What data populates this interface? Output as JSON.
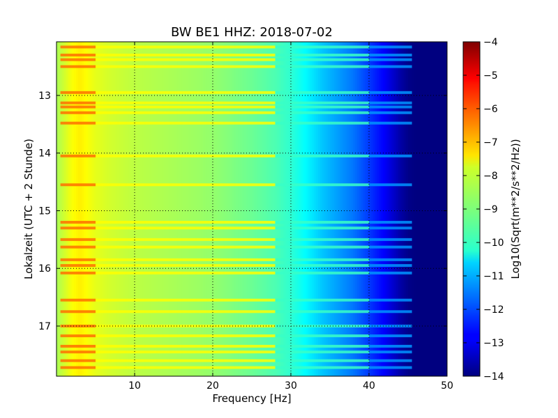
{
  "chart_data": {
    "type": "heatmap",
    "title": "BW BE1 HHZ: 2018-07-02",
    "xlabel": "Frequency [Hz]",
    "ylabel": "Lokalzeit (UTC + 2 Stunde)",
    "colorbar_label": "Log10(Sqrt(m**2/s**2/Hz))",
    "xlim": [
      0,
      50
    ],
    "ylim": [
      17.87,
      12.07
    ],
    "y_inverted": true,
    "x_ticks": [
      10,
      20,
      30,
      40,
      50
    ],
    "x_tick_labels": [
      "10",
      "20",
      "30",
      "40",
      "50"
    ],
    "y_ticks": [
      13,
      14,
      15,
      16,
      17
    ],
    "y_tick_labels": [
      "13",
      "14",
      "15",
      "16",
      "17"
    ],
    "colorbar_range": [
      -14,
      -4
    ],
    "colorbar_ticks": [
      -4,
      -5,
      -6,
      -7,
      -8,
      -9,
      -10,
      -11,
      -12,
      -13,
      -14
    ],
    "colorbar_tick_labels": [
      "−4",
      "−5",
      "−6",
      "−7",
      "−8",
      "−9",
      "−10",
      "−11",
      "−12",
      "−13",
      "−14"
    ],
    "colormap": "jet",
    "grid": true,
    "spectrum_profile": {
      "frequency_hz": [
        0,
        1,
        2,
        3,
        4,
        5,
        7,
        10,
        15,
        20,
        25,
        28,
        30,
        32,
        34,
        36,
        38,
        40,
        42,
        44,
        45,
        46,
        50
      ],
      "log10_amplitude": [
        -8.6,
        -8.2,
        -7.8,
        -7.6,
        -7.8,
        -8.0,
        -8.2,
        -8.4,
        -8.6,
        -8.8,
        -9.2,
        -9.5,
        -9.8,
        -10.3,
        -10.8,
        -11.2,
        -11.6,
        -12.2,
        -12.8,
        -13.6,
        -13.9,
        -14,
        -14
      ]
    },
    "loud_time_bands_hour": [
      12.16,
      12.3,
      12.38,
      12.5,
      12.95,
      13.13,
      13.2,
      13.3,
      13.48,
      14.05,
      14.55,
      15.2,
      15.3,
      15.5,
      15.63,
      15.85,
      15.95,
      16.08,
      16.55,
      16.75,
      17.0,
      17.17,
      17.35,
      17.45,
      17.6,
      17.72
    ]
  }
}
